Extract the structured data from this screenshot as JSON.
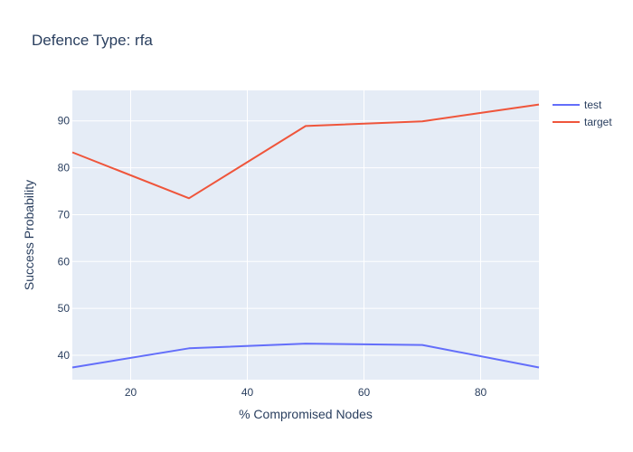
{
  "chart_data": {
    "type": "line",
    "title": "Defence Type: rfa",
    "xlabel": "% Compromised Nodes",
    "ylabel": "Success Probability",
    "x": [
      10,
      30,
      50,
      70,
      90
    ],
    "xlim": [
      10,
      90
    ],
    "ylim": [
      34.8,
      96.5
    ],
    "xticks": [
      20,
      40,
      60,
      80
    ],
    "yticks": [
      40,
      50,
      60,
      70,
      80,
      90
    ],
    "grid": true,
    "legend_position": "top-right",
    "plot_background": "#e5ecf6",
    "series": [
      {
        "name": "test",
        "color": "#636efa",
        "values": [
          37.4,
          41.5,
          42.5,
          42.2,
          37.4
        ]
      },
      {
        "name": "target",
        "color": "#ef553b",
        "values": [
          83.3,
          73.5,
          88.9,
          89.9,
          93.5
        ]
      }
    ]
  }
}
